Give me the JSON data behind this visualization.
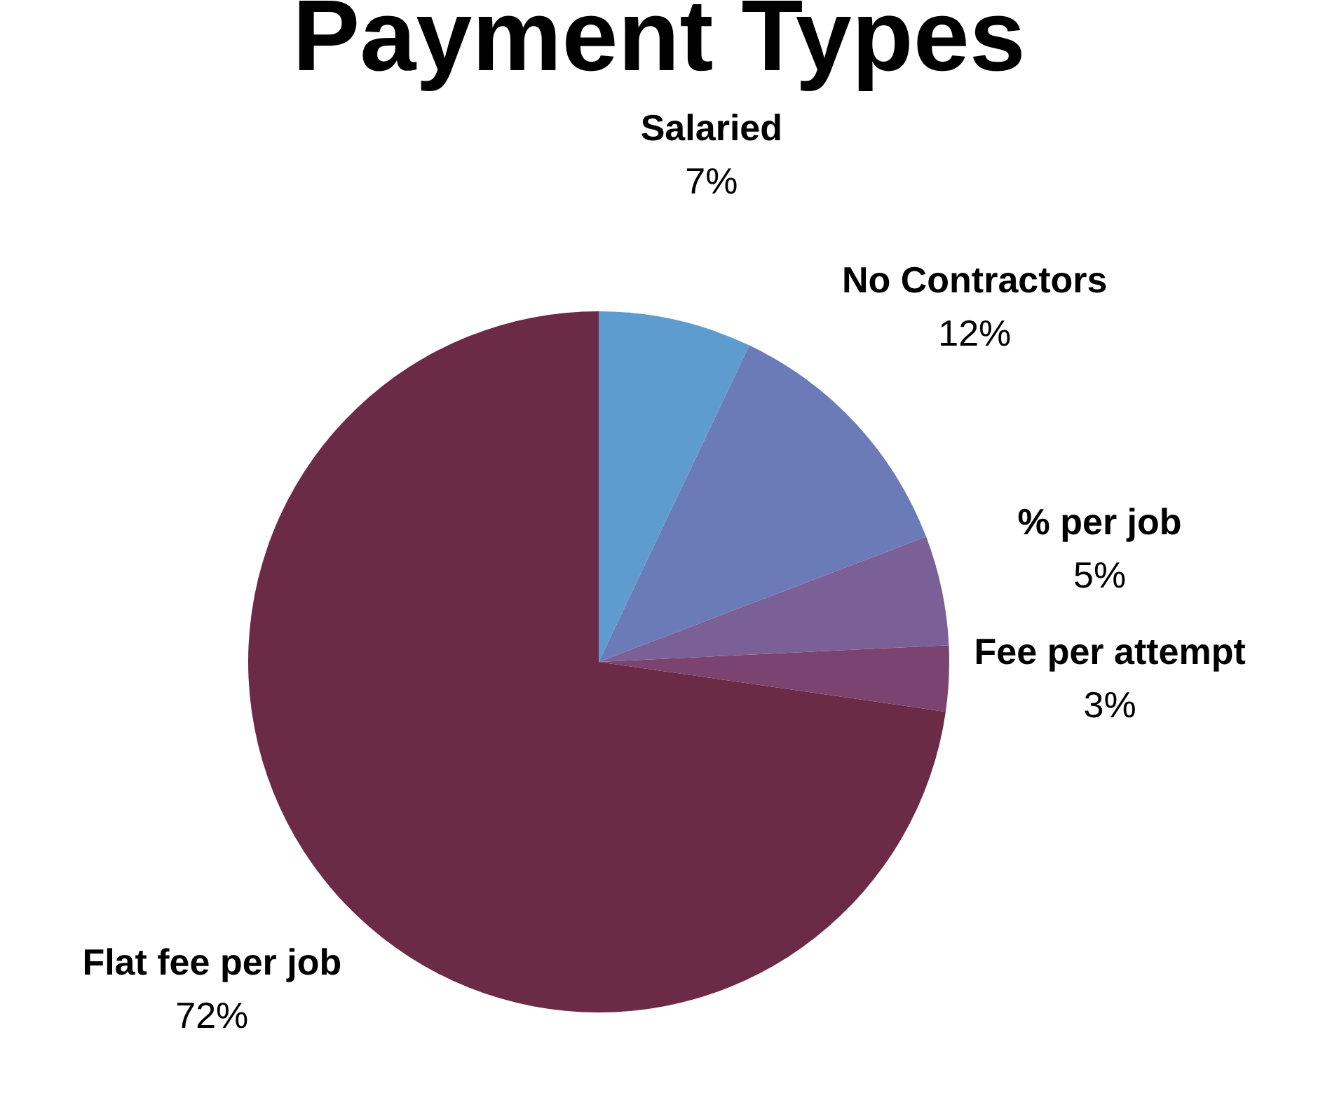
{
  "chart_data": {
    "type": "pie",
    "title": "Payment Types",
    "categories": [
      "Salaried",
      "No Contractors",
      "% per job",
      "Fee per attempt",
      "Flat fee per job"
    ],
    "values": [
      7,
      12,
      5,
      3,
      72
    ],
    "colors": [
      "#5e9bcf",
      "#6b7bb8",
      "#7a6096",
      "#7b4470",
      "#6b2a45"
    ],
    "value_labels": [
      "7%",
      "12%",
      "5%",
      "3%",
      "72%"
    ],
    "legend": false
  }
}
